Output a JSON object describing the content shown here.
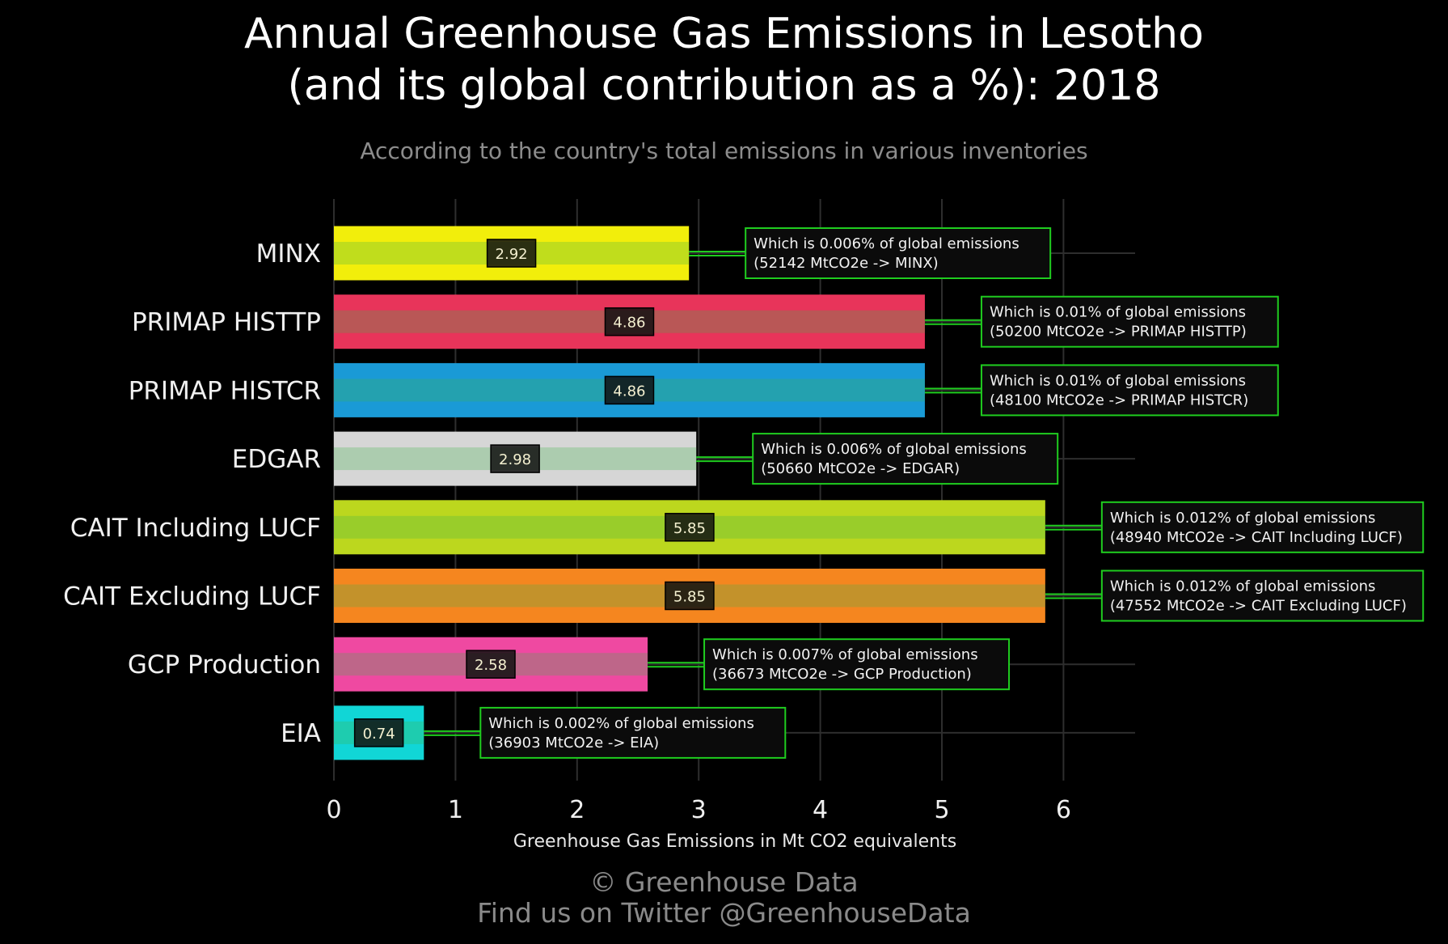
{
  "header": {
    "title_line1": "Annual Greenhouse Gas Emissions in Lesotho",
    "title_line2": "(and its global contribution as a %): 2018",
    "subtitle": "According to the country's total emissions in various inventories"
  },
  "footer": {
    "credit_line1": "© Greenhouse Data",
    "credit_line2": "Find us on Twitter @GreenhouseData"
  },
  "chart_data": {
    "type": "bar",
    "orientation": "horizontal",
    "xlabel": "Greenhouse Gas Emissions in Mt CO2 equivalents",
    "xlim": [
      0,
      6.6
    ],
    "xticks": [
      0,
      1,
      2,
      3,
      4,
      5,
      6
    ],
    "grid": true,
    "categories": [
      "MINX",
      "PRIMAP HISTTP",
      "PRIMAP HISTCR",
      "EDGAR",
      "CAIT Including LUCF",
      "CAIT Excluding LUCF",
      "GCP Production",
      "EIA"
    ],
    "values": [
      2.92,
      4.86,
      4.86,
      2.98,
      5.85,
      5.85,
      2.58,
      0.74
    ],
    "value_labels": [
      "2.92",
      "4.86",
      "4.86",
      "2.98",
      "5.85",
      "5.85",
      "2.58",
      "0.74"
    ],
    "colors": [
      "#f2ee0b",
      "#e8345a",
      "#1a9ad6",
      "#d6d6d6",
      "#bcd71e",
      "#f5861f",
      "#ef49a1",
      "#11d6d6"
    ],
    "annotations": [
      {
        "line1": "Which is 0.006% of global emissions",
        "line2": "(52142 MtCO2e -> MINX)"
      },
      {
        "line1": "Which is 0.01% of global emissions",
        "line2": "(50200 MtCO2e -> PRIMAP HISTTP)"
      },
      {
        "line1": "Which is 0.01% of global emissions",
        "line2": "(48100 MtCO2e -> PRIMAP HISTCR)"
      },
      {
        "line1": "Which is 0.006% of global emissions",
        "line2": "(50660 MtCO2e -> EDGAR)"
      },
      {
        "line1": "Which is 0.012% of global emissions",
        "line2": "(48940 MtCO2e -> CAIT Including LUCF)"
      },
      {
        "line1": "Which is 0.012% of global emissions",
        "line2": "(47552 MtCO2e -> CAIT Excluding LUCF)"
      },
      {
        "line1": "Which is 0.007% of global emissions",
        "line2": "(36673 MtCO2e -> GCP Production)"
      },
      {
        "line1": "Which is 0.002% of global emissions",
        "line2": "(36903 MtCO2e -> EIA)"
      }
    ],
    "annotation_color": "#1fcc1f"
  }
}
